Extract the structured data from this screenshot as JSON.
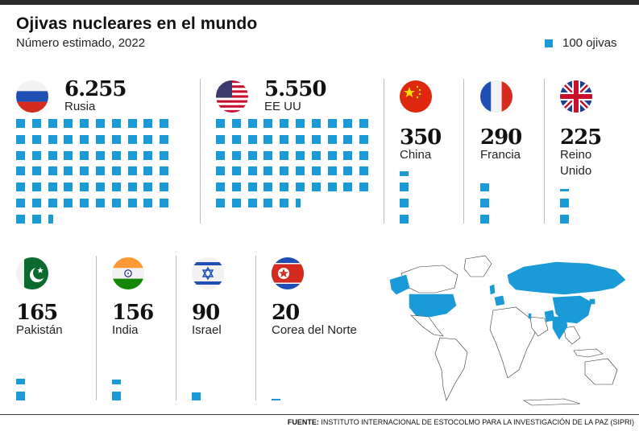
{
  "header": {
    "title": "Ojivas nucleares en el mundo",
    "subtitle": "Número estimado, 2022",
    "legend_label": "100 ojivas",
    "legend_color": "#1a9ad6"
  },
  "chart_data": {
    "type": "unit-chart",
    "unit": 100,
    "series": [
      {
        "name": "Rusia",
        "value": 6255,
        "display": "6.255",
        "flag": "russia-flag-icon"
      },
      {
        "name": "EE UU",
        "value": 5550,
        "display": "5.550",
        "flag": "usa-flag-icon"
      },
      {
        "name": "China",
        "value": 350,
        "display": "350",
        "flag": "china-flag-icon"
      },
      {
        "name": "Francia",
        "value": 290,
        "display": "290",
        "flag": "france-flag-icon"
      },
      {
        "name": "Reino Unido",
        "value": 225,
        "display": "225",
        "flag": "uk-flag-icon"
      },
      {
        "name": "Pakistán",
        "value": 165,
        "display": "165",
        "flag": "pakistan-flag-icon"
      },
      {
        "name": "India",
        "value": 156,
        "display": "156",
        "flag": "india-flag-icon"
      },
      {
        "name": "Israel",
        "value": 90,
        "display": "90",
        "flag": "israel-flag-icon"
      },
      {
        "name": "Corea del Norte",
        "value": 20,
        "display": "20",
        "flag": "north-korea-flag-icon"
      }
    ]
  },
  "map": {
    "icon": "world-map-icon",
    "highlight_color": "#1a9ad6"
  },
  "footer": {
    "source_label": "FUENTE:",
    "source_text": " INSTITUTO INTERNACIONAL DE ESTOCOLMO PARA LA INVESTIGACIÓN DE LA PAZ (SIPRI)"
  }
}
